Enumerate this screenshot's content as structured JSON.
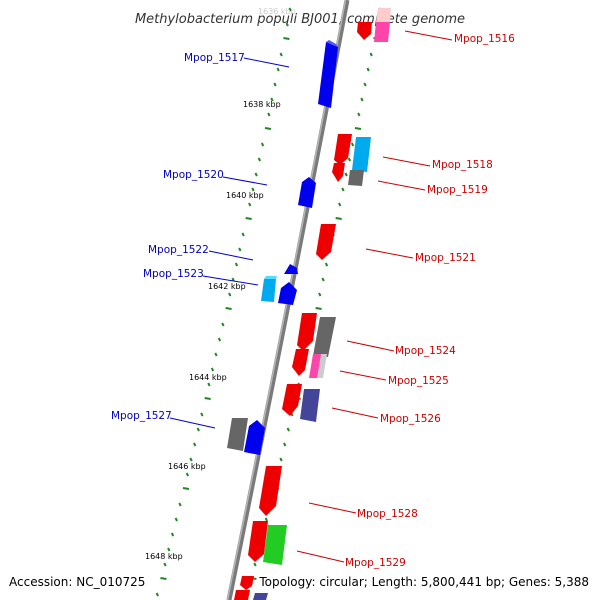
{
  "title": "Methylobacterium populi BJ001, complete genome",
  "footer": {
    "accession": "Accession: NC_010725",
    "topology": "Topology: circular; Length: 5,800,441 bp; Genes: 5,388"
  },
  "kbp_labels": [
    "1636 kbp",
    "1638 kbp",
    "1640 kbp",
    "1642 kbp",
    "1644 kbp",
    "1646 kbp",
    "1648 kbp"
  ],
  "genes_left": [
    "Mpop_1517",
    "Mpop_1520",
    "Mpop_1522",
    "Mpop_1523",
    "Mpop_1527"
  ],
  "genes_right": [
    "Mpop_1516",
    "Mpop_1518",
    "Mpop_1519",
    "Mpop_1521",
    "Mpop_1524",
    "Mpop_1525",
    "Mpop_1526",
    "Mpop_1528",
    "Mpop_1529"
  ],
  "colors": {
    "forward_strand": "#ff0000",
    "reverse_strand": "#0000ee",
    "rna": "#00bbee",
    "pseudo": "#777777",
    "pink": "#ff44aa",
    "green": "#22cc22",
    "purple": "#444499",
    "label_left": "#0000bb",
    "label_right": "#cc0000",
    "tick": "#228822"
  }
}
